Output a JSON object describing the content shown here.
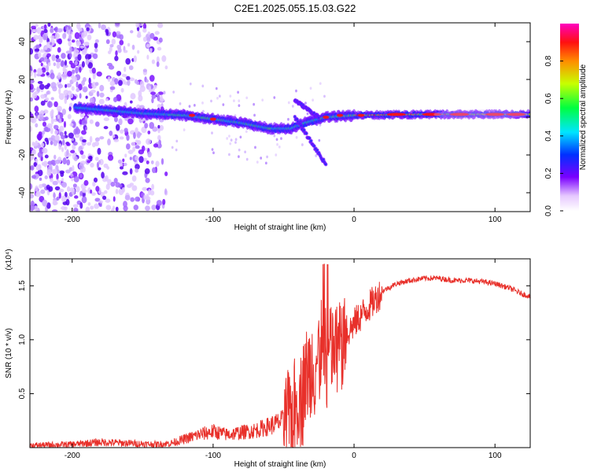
{
  "title": "C2E1.2025.055.15.03.G22",
  "chart_data": [
    {
      "type": "heatmap",
      "xlabel": "Height of straight line (km)",
      "ylabel": "Frequency (Hz)",
      "xlim": [
        -230,
        125
      ],
      "ylim": [
        -50,
        50
      ],
      "xticks": [
        -200,
        -100,
        0,
        100
      ],
      "yticks": [
        -40,
        -20,
        0,
        20,
        40
      ],
      "ridge": [
        {
          "x": -195,
          "y": 5
        },
        {
          "x": -150,
          "y": 2
        },
        {
          "x": -120,
          "y": 1
        },
        {
          "x": -100,
          "y": -1
        },
        {
          "x": -80,
          "y": -3
        },
        {
          "x": -60,
          "y": -6
        },
        {
          "x": -45,
          "y": -6
        },
        {
          "x": -35,
          "y": -3
        },
        {
          "x": -20,
          "y": 0
        },
        {
          "x": 0,
          "y": 1
        },
        {
          "x": 50,
          "y": 1.5
        },
        {
          "x": 125,
          "y": 1.5
        }
      ],
      "branches": [
        {
          "from": {
            "x": -42,
            "y": 9
          },
          "to": {
            "x": -25,
            "y": 0
          }
        },
        {
          "from": {
            "x": -42,
            "y": 0
          },
          "to": {
            "x": -20,
            "y": -25
          }
        }
      ],
      "colorbar": {
        "label": "Normalized spectral amplitude",
        "range": [
          0,
          1
        ],
        "ticks": [
          "0.0",
          "0.2",
          "0.4",
          "0.6",
          "0.8"
        ]
      }
    },
    {
      "type": "line",
      "xlabel": "Height of straight line (km)",
      "ylabel": "SNR (10 * v/v)",
      "yscale_label": "(x10⁴)",
      "xlim": [
        -230,
        125
      ],
      "ylim": [
        0,
        1.75
      ],
      "xticks": [
        -200,
        -100,
        0,
        100
      ],
      "yticks": [
        "0.5",
        "1.0",
        "1.5"
      ],
      "series": [
        {
          "color": "#e8302a",
          "x": [
            -230,
            -200,
            -180,
            -160,
            -140,
            -130,
            -120,
            -110,
            -100,
            -90,
            -80,
            -70,
            -60,
            -50,
            -45,
            -40,
            -35,
            -30,
            -25,
            -20,
            -15,
            -10,
            -5,
            0,
            10,
            20,
            30,
            40,
            50,
            60,
            70,
            80,
            90,
            100,
            110,
            120,
            125
          ],
          "y": [
            0.02,
            0.03,
            0.05,
            0.04,
            0.03,
            0.04,
            0.08,
            0.12,
            0.15,
            0.12,
            0.14,
            0.16,
            0.2,
            0.25,
            0.3,
            0.45,
            0.6,
            0.75,
            0.85,
            0.9,
            0.9,
            0.95,
            1.05,
            1.15,
            1.3,
            1.45,
            1.52,
            1.55,
            1.57,
            1.57,
            1.55,
            1.55,
            1.54,
            1.52,
            1.48,
            1.42,
            1.4
          ]
        }
      ]
    }
  ]
}
